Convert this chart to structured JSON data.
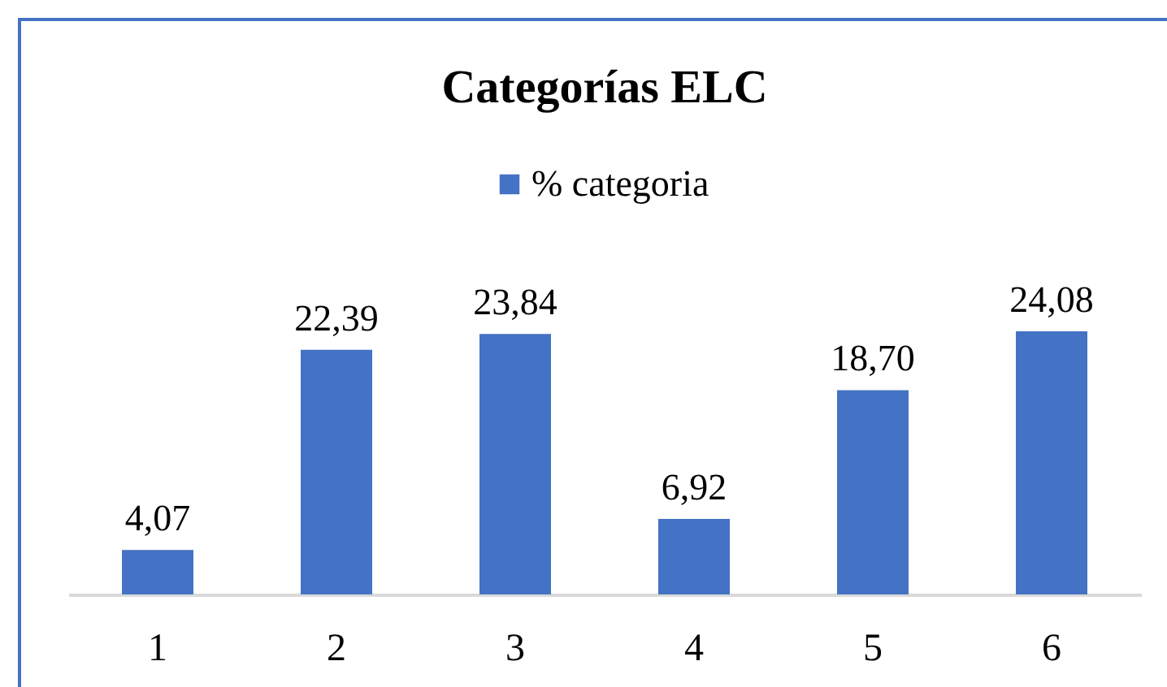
{
  "chart_data": {
    "type": "bar",
    "title": "Categorías ELC",
    "categories": [
      "1",
      "2",
      "3",
      "4",
      "5",
      "6"
    ],
    "series": [
      {
        "name": "% categoria",
        "color": "#4472c4",
        "values": [
          4.07,
          22.39,
          23.84,
          6.92,
          18.7,
          24.08
        ],
        "value_labels": [
          "4,07",
          "22,39",
          "23,84",
          "6,92",
          "18,70",
          "24,08"
        ]
      }
    ],
    "legend": "top",
    "grid": false,
    "tick_labels": "x"
  }
}
